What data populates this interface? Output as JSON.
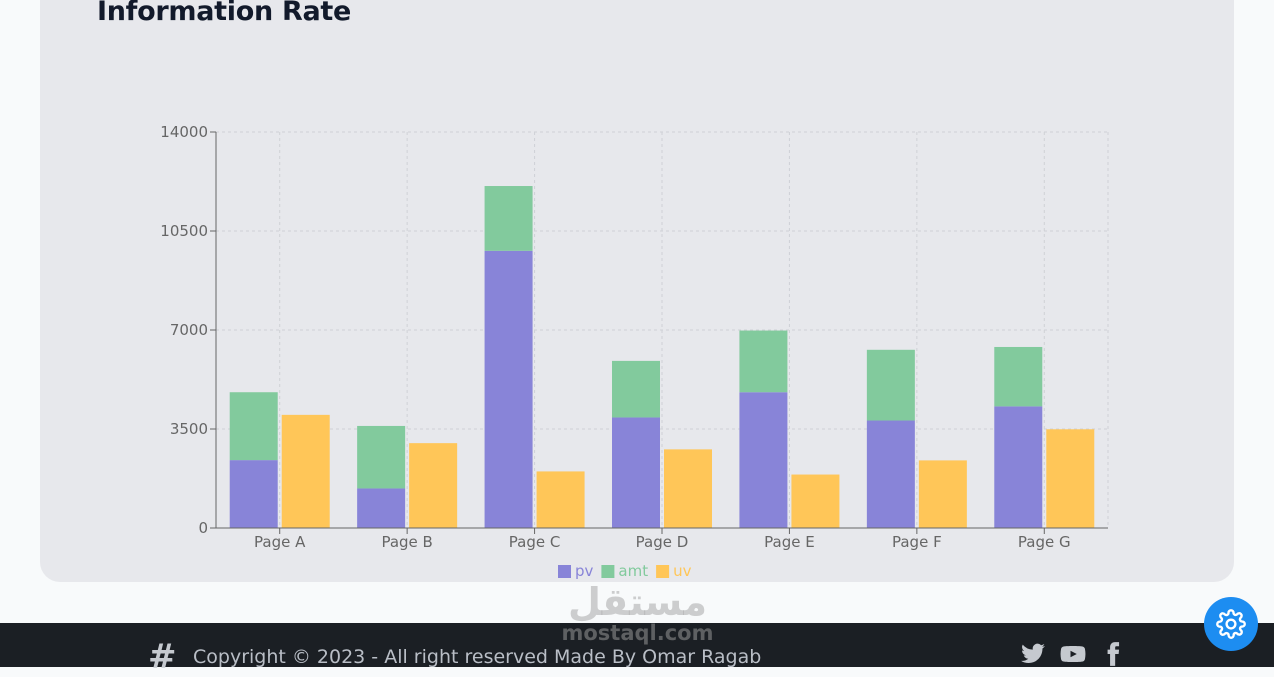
{
  "card": {
    "title": "Information Rate"
  },
  "chart_data": {
    "type": "bar",
    "categories": [
      "Page A",
      "Page B",
      "Page C",
      "Page D",
      "Page E",
      "Page F",
      "Page G"
    ],
    "series": [
      {
        "name": "pv",
        "stack": "a",
        "color": "#8884d8",
        "values": [
          2400,
          1398,
          9800,
          3908,
          4800,
          3800,
          4300
        ]
      },
      {
        "name": "amt",
        "stack": "a",
        "color": "#82ca9d",
        "values": [
          2400,
          2210,
          2290,
          2000,
          2181,
          2500,
          2100
        ]
      },
      {
        "name": "uv",
        "stack": "b",
        "color": "#ffc658",
        "values": [
          4000,
          3000,
          2000,
          2780,
          1890,
          2390,
          3490
        ]
      }
    ],
    "yticks": [
      "0",
      "3500",
      "7000",
      "10500",
      "14000"
    ],
    "ylim": [
      0,
      14000
    ],
    "grid": true,
    "legend": "bottom-center"
  },
  "footer": {
    "copyright": "Copyright © 2023 - All right reserved Made By Omar Ragab",
    "icons": [
      "hash-icon",
      "twitter-icon",
      "youtube-icon",
      "facebook-icon"
    ]
  },
  "watermark": {
    "arabic": "مستقل",
    "latin": "mostaql.com"
  },
  "settings": {
    "icon": "gear-icon",
    "color": "#1d8df1"
  }
}
